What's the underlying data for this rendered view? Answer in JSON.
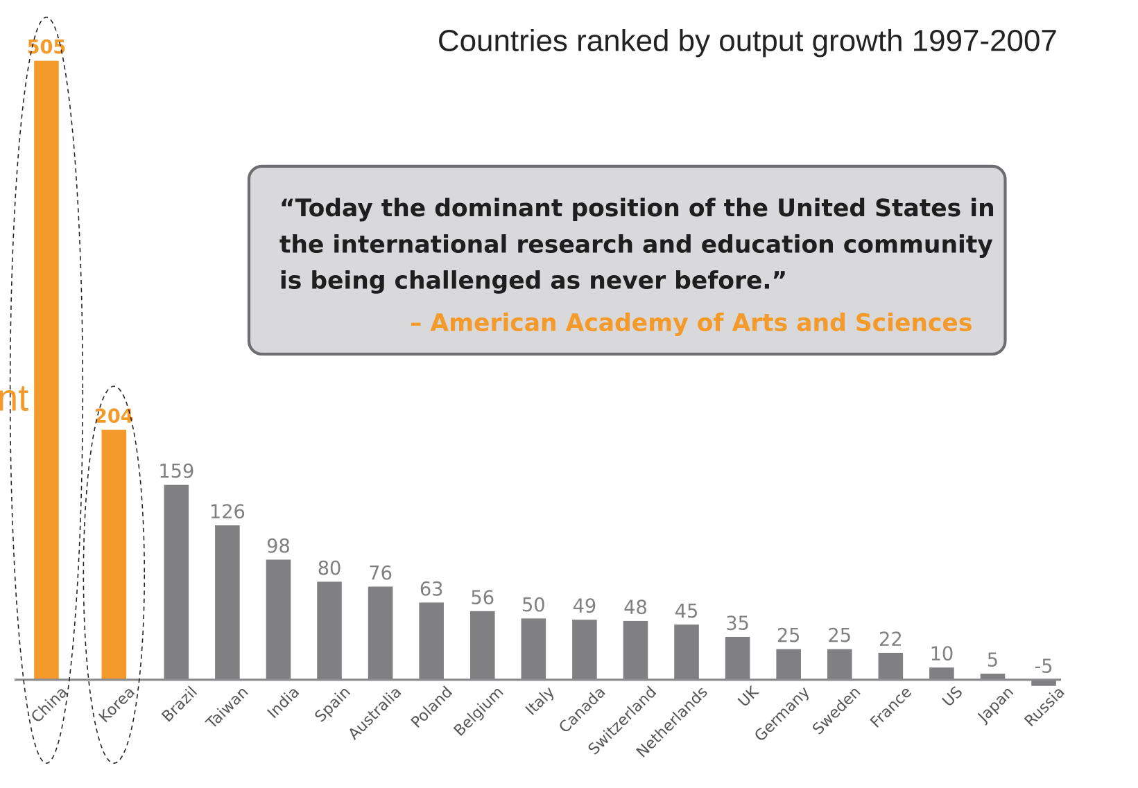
{
  "chart_data": {
    "type": "bar",
    "title": "Countries ranked by output growth 1997-2007",
    "categories": [
      "China",
      "Korea",
      "Brazil",
      "Taiwan",
      "India",
      "Spain",
      "Australia",
      "Poland",
      "Belgium",
      "Italy",
      "Canada",
      "Switzerland",
      "Netherlands",
      "UK",
      "Germany",
      "Sweden",
      "France",
      "US",
      "Japan",
      "Russia"
    ],
    "values": [
      505,
      204,
      159,
      126,
      98,
      80,
      76,
      63,
      56,
      50,
      49,
      48,
      45,
      35,
      25,
      25,
      22,
      10,
      5,
      -5
    ],
    "colors": [
      "#f39a2b",
      "#f39a2b",
      "#808083",
      "#808083",
      "#808083",
      "#808083",
      "#808083",
      "#808083",
      "#808083",
      "#808083",
      "#808083",
      "#808083",
      "#808083",
      "#808083",
      "#808083",
      "#808083",
      "#808083",
      "#808083",
      "#808083",
      "#808083"
    ],
    "highlighted": [
      0,
      1
    ]
  },
  "quote": {
    "lines": [
      "“Today the dominant position of the United States in",
      "the international research and education community",
      "is being challenged as never before.”"
    ],
    "attribution": "– American Academy of Arts and Sciences"
  },
  "fragment_text": "nt"
}
